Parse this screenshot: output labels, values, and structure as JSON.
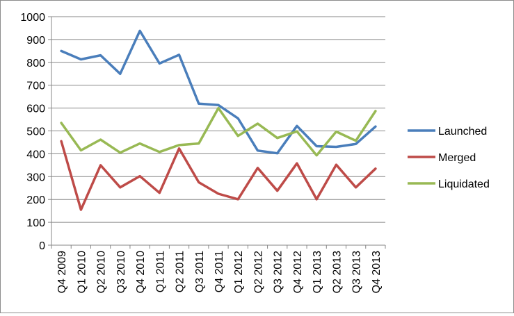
{
  "chart_data": {
    "type": "line",
    "categories": [
      "Q4 2009",
      "Q1 2010",
      "Q2 2010",
      "Q3 2010",
      "Q4 2010",
      "Q1 2011",
      "Q2 2011",
      "Q3 2011",
      "Q4 2011",
      "Q1 2012",
      "Q2 2012",
      "Q3 2012",
      "Q4 2012",
      "Q1 2013",
      "Q2 2013",
      "Q3 2013",
      "Q4 2013"
    ],
    "series": [
      {
        "name": "Launched",
        "color": "#4a7ebb",
        "values": [
          850,
          813,
          831,
          750,
          938,
          795,
          833,
          619,
          613,
          555,
          414,
          402,
          522,
          433,
          430,
          443,
          519
        ]
      },
      {
        "name": "Merged",
        "color": "#be4b48",
        "values": [
          455,
          155,
          350,
          253,
          302,
          229,
          423,
          275,
          225,
          201,
          338,
          238,
          358,
          201,
          352,
          253,
          335
        ]
      },
      {
        "name": "Liquidated",
        "color": "#98b954",
        "values": [
          535,
          415,
          462,
          405,
          445,
          408,
          438,
          445,
          600,
          478,
          532,
          469,
          498,
          393,
          497,
          457,
          587
        ]
      }
    ],
    "yticks": [
      "0",
      "100",
      "200",
      "300",
      "400",
      "500",
      "600",
      "700",
      "800",
      "900",
      "1000"
    ],
    "ylim": [
      0,
      1000
    ],
    "title": "",
    "xlabel": "",
    "ylabel": "",
    "grid": true,
    "legend": "right"
  }
}
